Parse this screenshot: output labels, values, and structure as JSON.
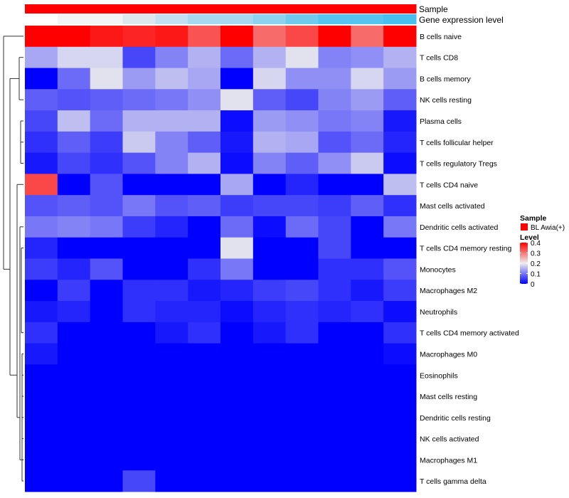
{
  "chart_data": {
    "type": "heatmap",
    "annotation_tracks": [
      {
        "key": "sample",
        "label": "Sample",
        "color": "#ff0000"
      },
      {
        "key": "gene",
        "label": "Gene expression level",
        "gradient": [
          "#ffffff",
          "#f2f4f6",
          "#dde7ee",
          "#c3e0f0",
          "#a6d9ef",
          "#8dd2ef",
          "#6fcaee",
          "#55c4ee",
          "#47c0ee"
        ]
      }
    ],
    "rows": [
      "B cells naive",
      "T cells CD8",
      "B cells memory",
      "NK cells resting",
      "Plasma cells",
      "T cells follicular helper",
      "T cells regulatory  Tregs",
      "T cells CD4 naive",
      "Mast cells activated",
      "Dendritic cells activated",
      "T cells CD4 memory resting",
      "Monocytes",
      "Macrophages M2",
      "Neutrophils",
      "T cells CD4 memory activated",
      "Macrophages M0",
      "Eosinophils",
      "Mast cells resting",
      "Dendritic cells resting",
      "NK cells activated",
      "Macrophages M1",
      "T cells gamma delta"
    ],
    "n_columns": 12,
    "values": [
      [
        0.4,
        0.4,
        0.38,
        0.37,
        0.38,
        0.33,
        0.41,
        0.31,
        0.34,
        0.41,
        0.31,
        0.41
      ],
      [
        0.14,
        0.18,
        0.18,
        0.06,
        0.11,
        0.15,
        0.09,
        0.15,
        0.19,
        0.11,
        0.12,
        0.15
      ],
      [
        0.0,
        0.09,
        0.19,
        0.13,
        0.16,
        0.14,
        0.0,
        0.18,
        0.12,
        0.12,
        0.18,
        0.13
      ],
      [
        0.08,
        0.07,
        0.08,
        0.09,
        0.1,
        0.12,
        0.19,
        0.08,
        0.06,
        0.11,
        0.13,
        0.08
      ],
      [
        0.06,
        0.16,
        0.09,
        0.15,
        0.15,
        0.15,
        0.01,
        0.13,
        0.12,
        0.1,
        0.11,
        0.02
      ],
      [
        0.04,
        0.08,
        0.05,
        0.17,
        0.11,
        0.08,
        0.02,
        0.15,
        0.14,
        0.07,
        0.09,
        0.03
      ],
      [
        0.02,
        0.06,
        0.04,
        0.07,
        0.11,
        0.15,
        0.01,
        0.11,
        0.08,
        0.12,
        0.17,
        0.01
      ],
      [
        0.34,
        0.0,
        0.07,
        0.0,
        0.0,
        0.0,
        0.14,
        0.0,
        0.03,
        0.0,
        0.0,
        0.16
      ],
      [
        0.07,
        0.08,
        0.07,
        0.1,
        0.07,
        0.08,
        0.05,
        0.06,
        0.06,
        0.05,
        0.08,
        0.04
      ],
      [
        0.1,
        0.11,
        0.1,
        0.05,
        0.03,
        0.0,
        0.09,
        0.01,
        0.09,
        0.06,
        0.0,
        0.1
      ],
      [
        0.03,
        0.0,
        0.0,
        0.0,
        0.0,
        0.0,
        0.19,
        0.0,
        0.0,
        0.06,
        0.0,
        0.0
      ],
      [
        0.05,
        0.03,
        0.07,
        0.0,
        0.0,
        0.04,
        0.1,
        0.0,
        0.0,
        0.04,
        0.04,
        0.07
      ],
      [
        0.0,
        0.05,
        0.0,
        0.04,
        0.04,
        0.02,
        0.03,
        0.05,
        0.06,
        0.04,
        0.02,
        0.05
      ],
      [
        0.02,
        0.03,
        0.0,
        0.04,
        0.03,
        0.03,
        0.01,
        0.03,
        0.04,
        0.03,
        0.04,
        0.01
      ],
      [
        0.04,
        0.0,
        0.0,
        0.0,
        0.02,
        0.04,
        0.0,
        0.02,
        0.04,
        0.0,
        0.0,
        0.04
      ],
      [
        0.02,
        0.0,
        0.0,
        0.0,
        0.0,
        0.0,
        0.0,
        0.0,
        0.0,
        0.0,
        0.0,
        0.01
      ],
      [
        0.0,
        0.0,
        0.0,
        0.0,
        0.0,
        0.0,
        0.0,
        0.0,
        0.0,
        0.0,
        0.0,
        0.0
      ],
      [
        0.0,
        0.0,
        0.0,
        0.0,
        0.0,
        0.0,
        0.0,
        0.0,
        0.0,
        0.0,
        0.0,
        0.0
      ],
      [
        0.0,
        0.0,
        0.0,
        0.0,
        0.0,
        0.0,
        0.0,
        0.0,
        0.0,
        0.0,
        0.0,
        0.0
      ],
      [
        0.0,
        0.0,
        0.0,
        0.0,
        0.0,
        0.0,
        0.0,
        0.0,
        0.0,
        0.0,
        0.0,
        0.0
      ],
      [
        0.0,
        0.0,
        0.0,
        0.0,
        0.0,
        0.0,
        0.0,
        0.0,
        0.0,
        0.0,
        0.0,
        0.0
      ],
      [
        0.0,
        0.0,
        0.0,
        0.06,
        0.0,
        0.0,
        0.0,
        0.0,
        0.0,
        0.0,
        0.0,
        0.0
      ]
    ],
    "color_scale": {
      "range": [
        0,
        0.4
      ],
      "low": "#0000ff",
      "mid_value": 0.2,
      "mid": "#eeeeee",
      "high": "#ff0000"
    },
    "legend": {
      "sample_title": "Sample",
      "sample_entry": "BL Awia(+)",
      "sample_color": "#ff0000",
      "level_title": "Level",
      "ticks": [
        "0",
        "0.1",
        "0.2",
        "0.3",
        "0.4"
      ],
      "tick_values": [
        0,
        0.1,
        0.2,
        0.3,
        0.4
      ]
    },
    "dendrogram": "row clustering tree on left",
    "title": ""
  }
}
